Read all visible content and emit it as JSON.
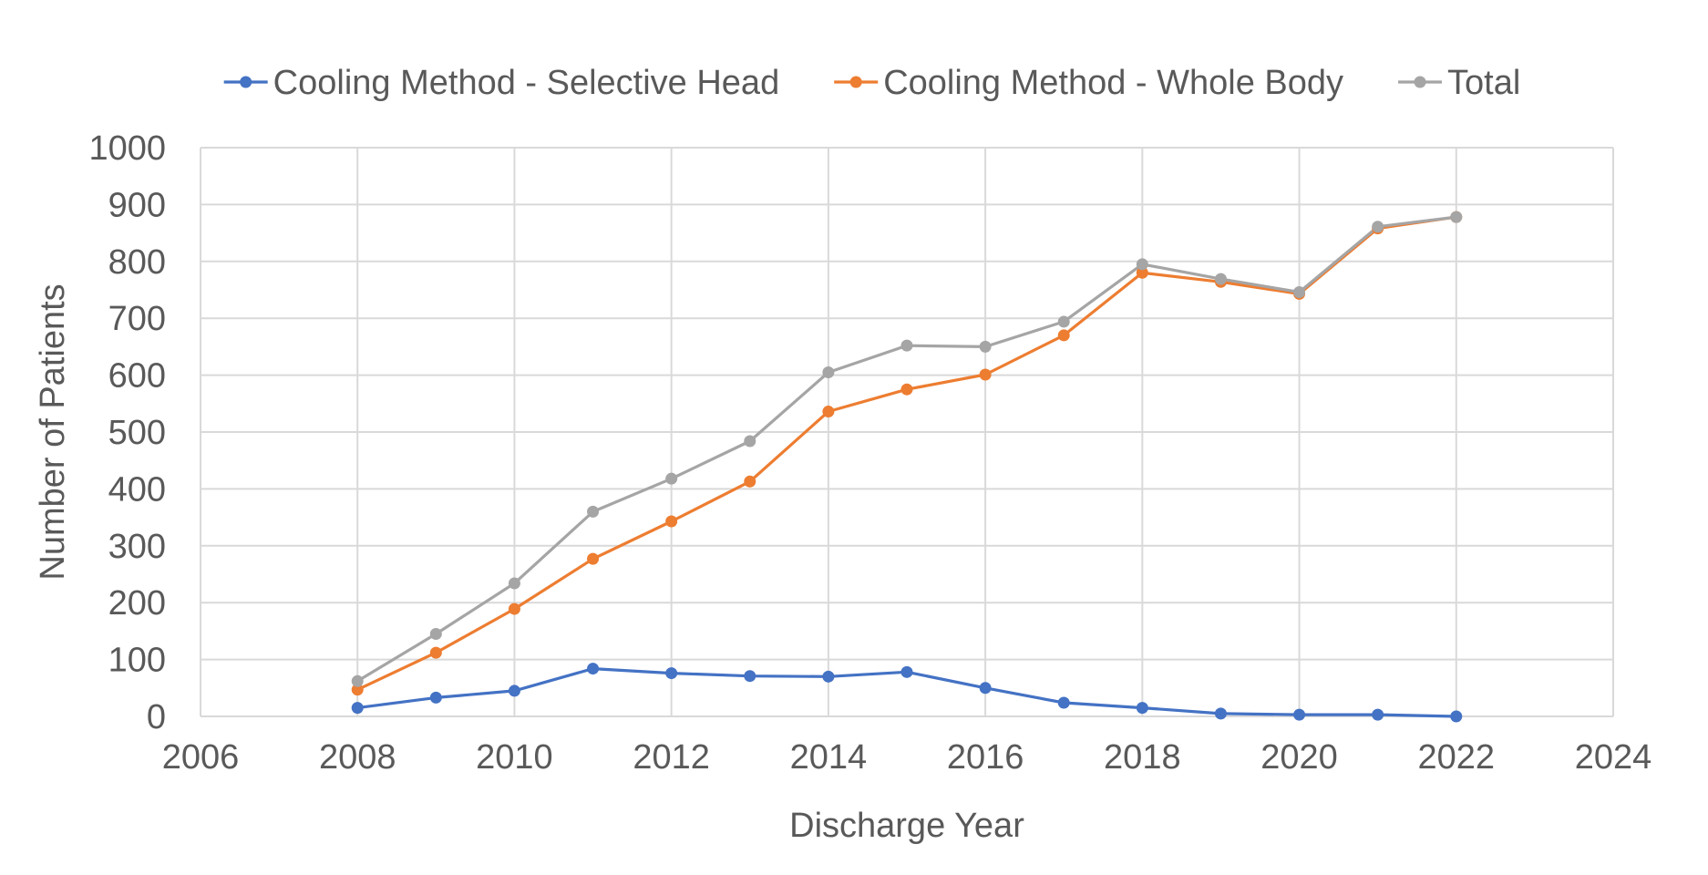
{
  "chart_data": {
    "type": "line",
    "title": "",
    "xlabel": "Discharge Year",
    "ylabel": "Number of Patients",
    "xlim": [
      2006,
      2024
    ],
    "ylim": [
      0,
      1000
    ],
    "xticks": [
      2006,
      2008,
      2010,
      2012,
      2014,
      2016,
      2018,
      2020,
      2022,
      2024
    ],
    "yticks": [
      0,
      100,
      200,
      300,
      400,
      500,
      600,
      700,
      800,
      900,
      1000
    ],
    "grid": true,
    "legend_position": "top",
    "x": [
      2008,
      2009,
      2010,
      2011,
      2012,
      2013,
      2014,
      2015,
      2016,
      2017,
      2018,
      2019,
      2020,
      2021,
      2022
    ],
    "series": [
      {
        "name": "Cooling Method - Selective Head",
        "color": "#4472c4",
        "values": [
          15,
          33,
          45,
          84,
          76,
          71,
          70,
          78,
          50,
          24,
          15,
          5,
          3,
          3,
          0
        ]
      },
      {
        "name": "Cooling Method - Whole Body",
        "color": "#ed7d31",
        "values": [
          47,
          112,
          189,
          277,
          343,
          413,
          536,
          575,
          601,
          670,
          780,
          764,
          743,
          858,
          878
        ]
      },
      {
        "name": "Total",
        "color": "#a5a5a5",
        "values": [
          62,
          145,
          234,
          360,
          418,
          484,
          605,
          652,
          650,
          694,
          795,
          769,
          746,
          861,
          878
        ]
      }
    ]
  }
}
